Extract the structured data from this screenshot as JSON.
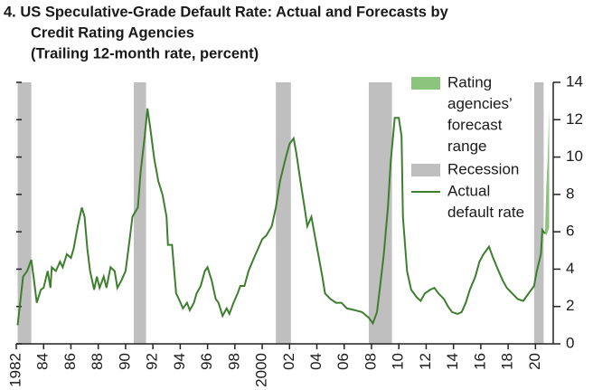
{
  "chart_data": {
    "type": "line",
    "title": [
      "4. US Speculative-Grade Default Rate: Actual and Forecasts by",
      "Credit Rating Agencies"
    ],
    "subtitle": "(Trailing 12-month rate, percent)",
    "x": [
      1982.1,
      1982.5,
      1982.8,
      1983.1,
      1983.3,
      1983.5,
      1983.8,
      1984.0,
      1984.3,
      1984.5,
      1984.6,
      1984.9,
      1985.2,
      1985.4,
      1985.7,
      1986.0,
      1986.2,
      1986.5,
      1986.8,
      1987.0,
      1987.2,
      1987.4,
      1987.7,
      1987.9,
      1988.1,
      1988.4,
      1988.6,
      1988.9,
      1989.2,
      1989.4,
      1989.7,
      1990.0,
      1990.3,
      1990.5,
      1990.9,
      1991.1,
      1991.4,
      1991.6,
      1991.8,
      1992.1,
      1992.4,
      1992.7,
      1993.0,
      1993.1,
      1993.4,
      1993.7,
      1993.9,
      1994.2,
      1994.5,
      1994.7,
      1995.0,
      1995.2,
      1995.5,
      1995.8,
      1996.0,
      1996.3,
      1996.6,
      1996.8,
      1997.1,
      1997.4,
      1997.6,
      1997.9,
      1998.2,
      1998.4,
      1998.7,
      1999.0,
      1999.4,
      1999.7,
      2000.0,
      2000.3,
      2000.7,
      2001.0,
      2001.3,
      2001.7,
      2002.0,
      2002.3,
      2002.5,
      2002.8,
      2003.1,
      2003.3,
      2003.6,
      2003.9,
      2004.1,
      2004.4,
      2004.6,
      2005.0,
      2005.4,
      2005.8,
      2006.2,
      2006.8,
      2007.3,
      2007.8,
      2008.1,
      2008.4,
      2008.6,
      2008.9,
      2009.2,
      2009.4,
      2009.7,
      2010.0,
      2010.2,
      2010.3,
      2010.6,
      2010.9,
      2011.3,
      2011.6,
      2011.9,
      2012.3,
      2012.6,
      2012.9,
      2013.3,
      2013.6,
      2013.9,
      2014.3,
      2014.6,
      2014.9,
      2015.2,
      2015.6,
      2015.9,
      2016.2,
      2016.6,
      2016.9,
      2017.3,
      2017.6,
      2017.9,
      2018.3,
      2018.7,
      2019.1,
      2019.5,
      2019.9,
      2020.1,
      2020.4,
      2020.5,
      2020.7
    ],
    "series": [
      {
        "name": [
          "Actual",
          "default rate"
        ],
        "color": "#3d7f2e",
        "values": [
          1.0,
          3.6,
          3.9,
          4.5,
          3.4,
          2.2,
          2.9,
          3.0,
          3.9,
          3.0,
          4.1,
          3.9,
          4.4,
          4.1,
          4.8,
          4.6,
          5.1,
          6.3,
          7.3,
          6.8,
          5.1,
          3.9,
          2.9,
          3.6,
          3.0,
          3.6,
          3.0,
          4.1,
          3.9,
          3.0,
          3.4,
          3.9,
          5.6,
          6.8,
          7.3,
          9.2,
          11.1,
          12.6,
          11.6,
          9.9,
          8.7,
          8.0,
          6.8,
          5.3,
          5.3,
          2.7,
          2.4,
          1.9,
          2.2,
          1.8,
          2.2,
          2.7,
          3.1,
          3.9,
          4.1,
          3.4,
          2.4,
          2.2,
          1.5,
          1.9,
          1.6,
          2.2,
          2.7,
          3.1,
          3.1,
          3.9,
          4.6,
          5.1,
          5.6,
          5.8,
          6.3,
          7.3,
          8.7,
          9.9,
          10.7,
          11.0,
          10.2,
          8.7,
          7.3,
          6.3,
          6.8,
          5.6,
          4.8,
          3.6,
          2.7,
          2.4,
          2.2,
          2.2,
          1.9,
          1.8,
          1.7,
          1.4,
          1.1,
          1.7,
          2.9,
          4.8,
          7.3,
          9.7,
          12.1,
          12.1,
          11.1,
          6.8,
          3.9,
          2.9,
          2.5,
          2.3,
          2.7,
          2.9,
          3.0,
          2.7,
          2.4,
          2.0,
          1.7,
          1.6,
          1.7,
          2.2,
          2.9,
          3.6,
          4.4,
          4.8,
          5.2,
          4.6,
          3.9,
          3.4,
          3.0,
          2.7,
          2.4,
          2.3,
          2.7,
          3.1,
          3.9,
          4.8,
          6.1,
          5.9
        ]
      }
    ],
    "recessions": {
      "name": "Recession",
      "color": "#bfbfbf",
      "ranges": [
        [
          1982.1,
          1983.1
        ],
        [
          1990.6,
          1991.5
        ],
        [
          2001.0,
          2002.1
        ],
        [
          2007.8,
          2009.5
        ],
        [
          2019.9,
          2020.6
        ]
      ]
    },
    "forecast": {
      "name": [
        "Rating",
        "agencies’",
        "forecast",
        "range"
      ],
      "color": "#8cc47e",
      "x": [
        2020.7,
        2020.8,
        2020.9,
        2021.0
      ],
      "low": [
        5.9,
        5.8,
        6.0,
        6.2
      ],
      "high": [
        6.0,
        8.5,
        10.0,
        12.6
      ]
    },
    "xlim": [
      1982,
      2021.3
    ],
    "xticks": [
      {
        "value": 1982,
        "label": "1982"
      },
      {
        "value": 1984,
        "label": "84"
      },
      {
        "value": 1986,
        "label": "86"
      },
      {
        "value": 1988,
        "label": "88"
      },
      {
        "value": 1990,
        "label": "90"
      },
      {
        "value": 1992,
        "label": "92"
      },
      {
        "value": 1994,
        "label": "94"
      },
      {
        "value": 1996,
        "label": "96"
      },
      {
        "value": 1998,
        "label": "98"
      },
      {
        "value": 2000,
        "label": "2000"
      },
      {
        "value": 2002,
        "label": "02"
      },
      {
        "value": 2004,
        "label": "04"
      },
      {
        "value": 2006,
        "label": "06"
      },
      {
        "value": 2008,
        "label": "08"
      },
      {
        "value": 2010,
        "label": "10"
      },
      {
        "value": 2012,
        "label": "12"
      },
      {
        "value": 2014,
        "label": "14"
      },
      {
        "value": 2016,
        "label": "16"
      },
      {
        "value": 2018,
        "label": "18"
      },
      {
        "value": 2020,
        "label": "20"
      }
    ],
    "ylim": [
      0,
      14
    ],
    "yticks": [
      0,
      2,
      4,
      6,
      8,
      10,
      12,
      14
    ],
    "legend": "top-right"
  }
}
